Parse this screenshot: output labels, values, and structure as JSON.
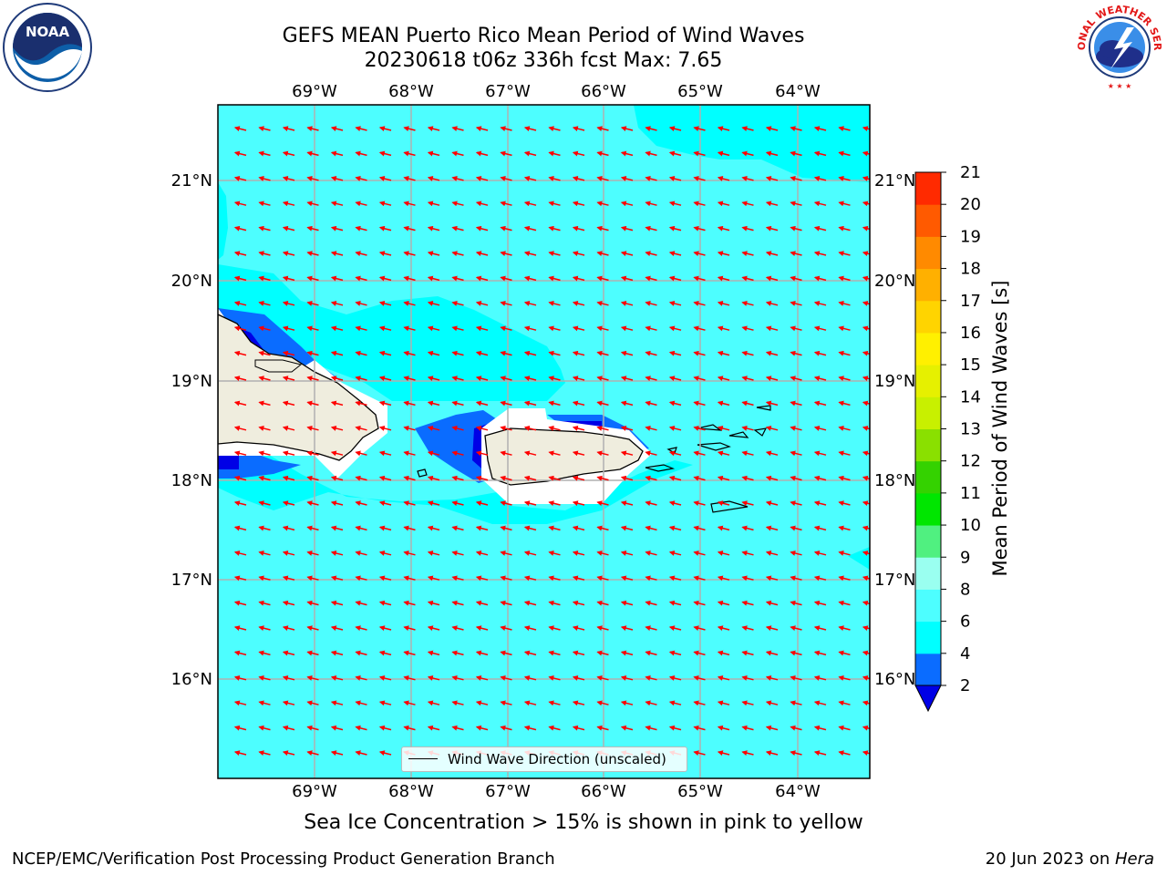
{
  "header": {
    "title_line1": "GEFS MEAN Puerto Rico Mean Period of Wind Waves",
    "title_line2": "20230618 t06z 336h fcst   Max: 7.65"
  },
  "logos": {
    "left": {
      "text": "NOAA",
      "icon": "noaa-logo-icon"
    },
    "right": {
      "text": "NATIONAL WEATHER SERVICE",
      "icon": "nws-logo-icon"
    }
  },
  "map": {
    "lon_labels": [
      "69°W",
      "68°W",
      "67°W",
      "66°W",
      "65°W",
      "64°W"
    ],
    "lat_labels": [
      "21°N",
      "20°N",
      "19°N",
      "18°N",
      "17°N",
      "16°N"
    ],
    "colors": {
      "ocean_main": "#4dfeff",
      "ocean_light": "#00ffff",
      "shallow": "#0a6cff",
      "deep": "#0000e6",
      "land": "#efedde",
      "arrow": "#ff0000",
      "grid": "#b0b0b0"
    },
    "legend": "Wind Wave Direction (unscaled)"
  },
  "colorbar": {
    "title": "Mean Period of Wind Waves [s]",
    "ticks": [
      "2",
      "4",
      "6",
      "8",
      "9",
      "10",
      "11",
      "12",
      "13",
      "14",
      "15",
      "16",
      "17",
      "18",
      "19",
      "20",
      "21"
    ],
    "colors": [
      "#0a6cff",
      "#00ffff",
      "#4dfeff",
      "#9afff0",
      "#50f080",
      "#00e600",
      "#34d200",
      "#8ae000",
      "#c8f000",
      "#e6f000",
      "#fff000",
      "#ffd400",
      "#ffb000",
      "#ff8a00",
      "#ff5a00",
      "#ff2a00"
    ],
    "extend_color": "#0000e6"
  },
  "subtitle": "Sea Ice Concentration > 15% is shown in pink to yellow",
  "footer": {
    "left": "NCEP/EMC/Verification Post Processing Product Generation Branch",
    "right_prefix": "20 Jun 2023 on ",
    "right_host": "Hera"
  }
}
